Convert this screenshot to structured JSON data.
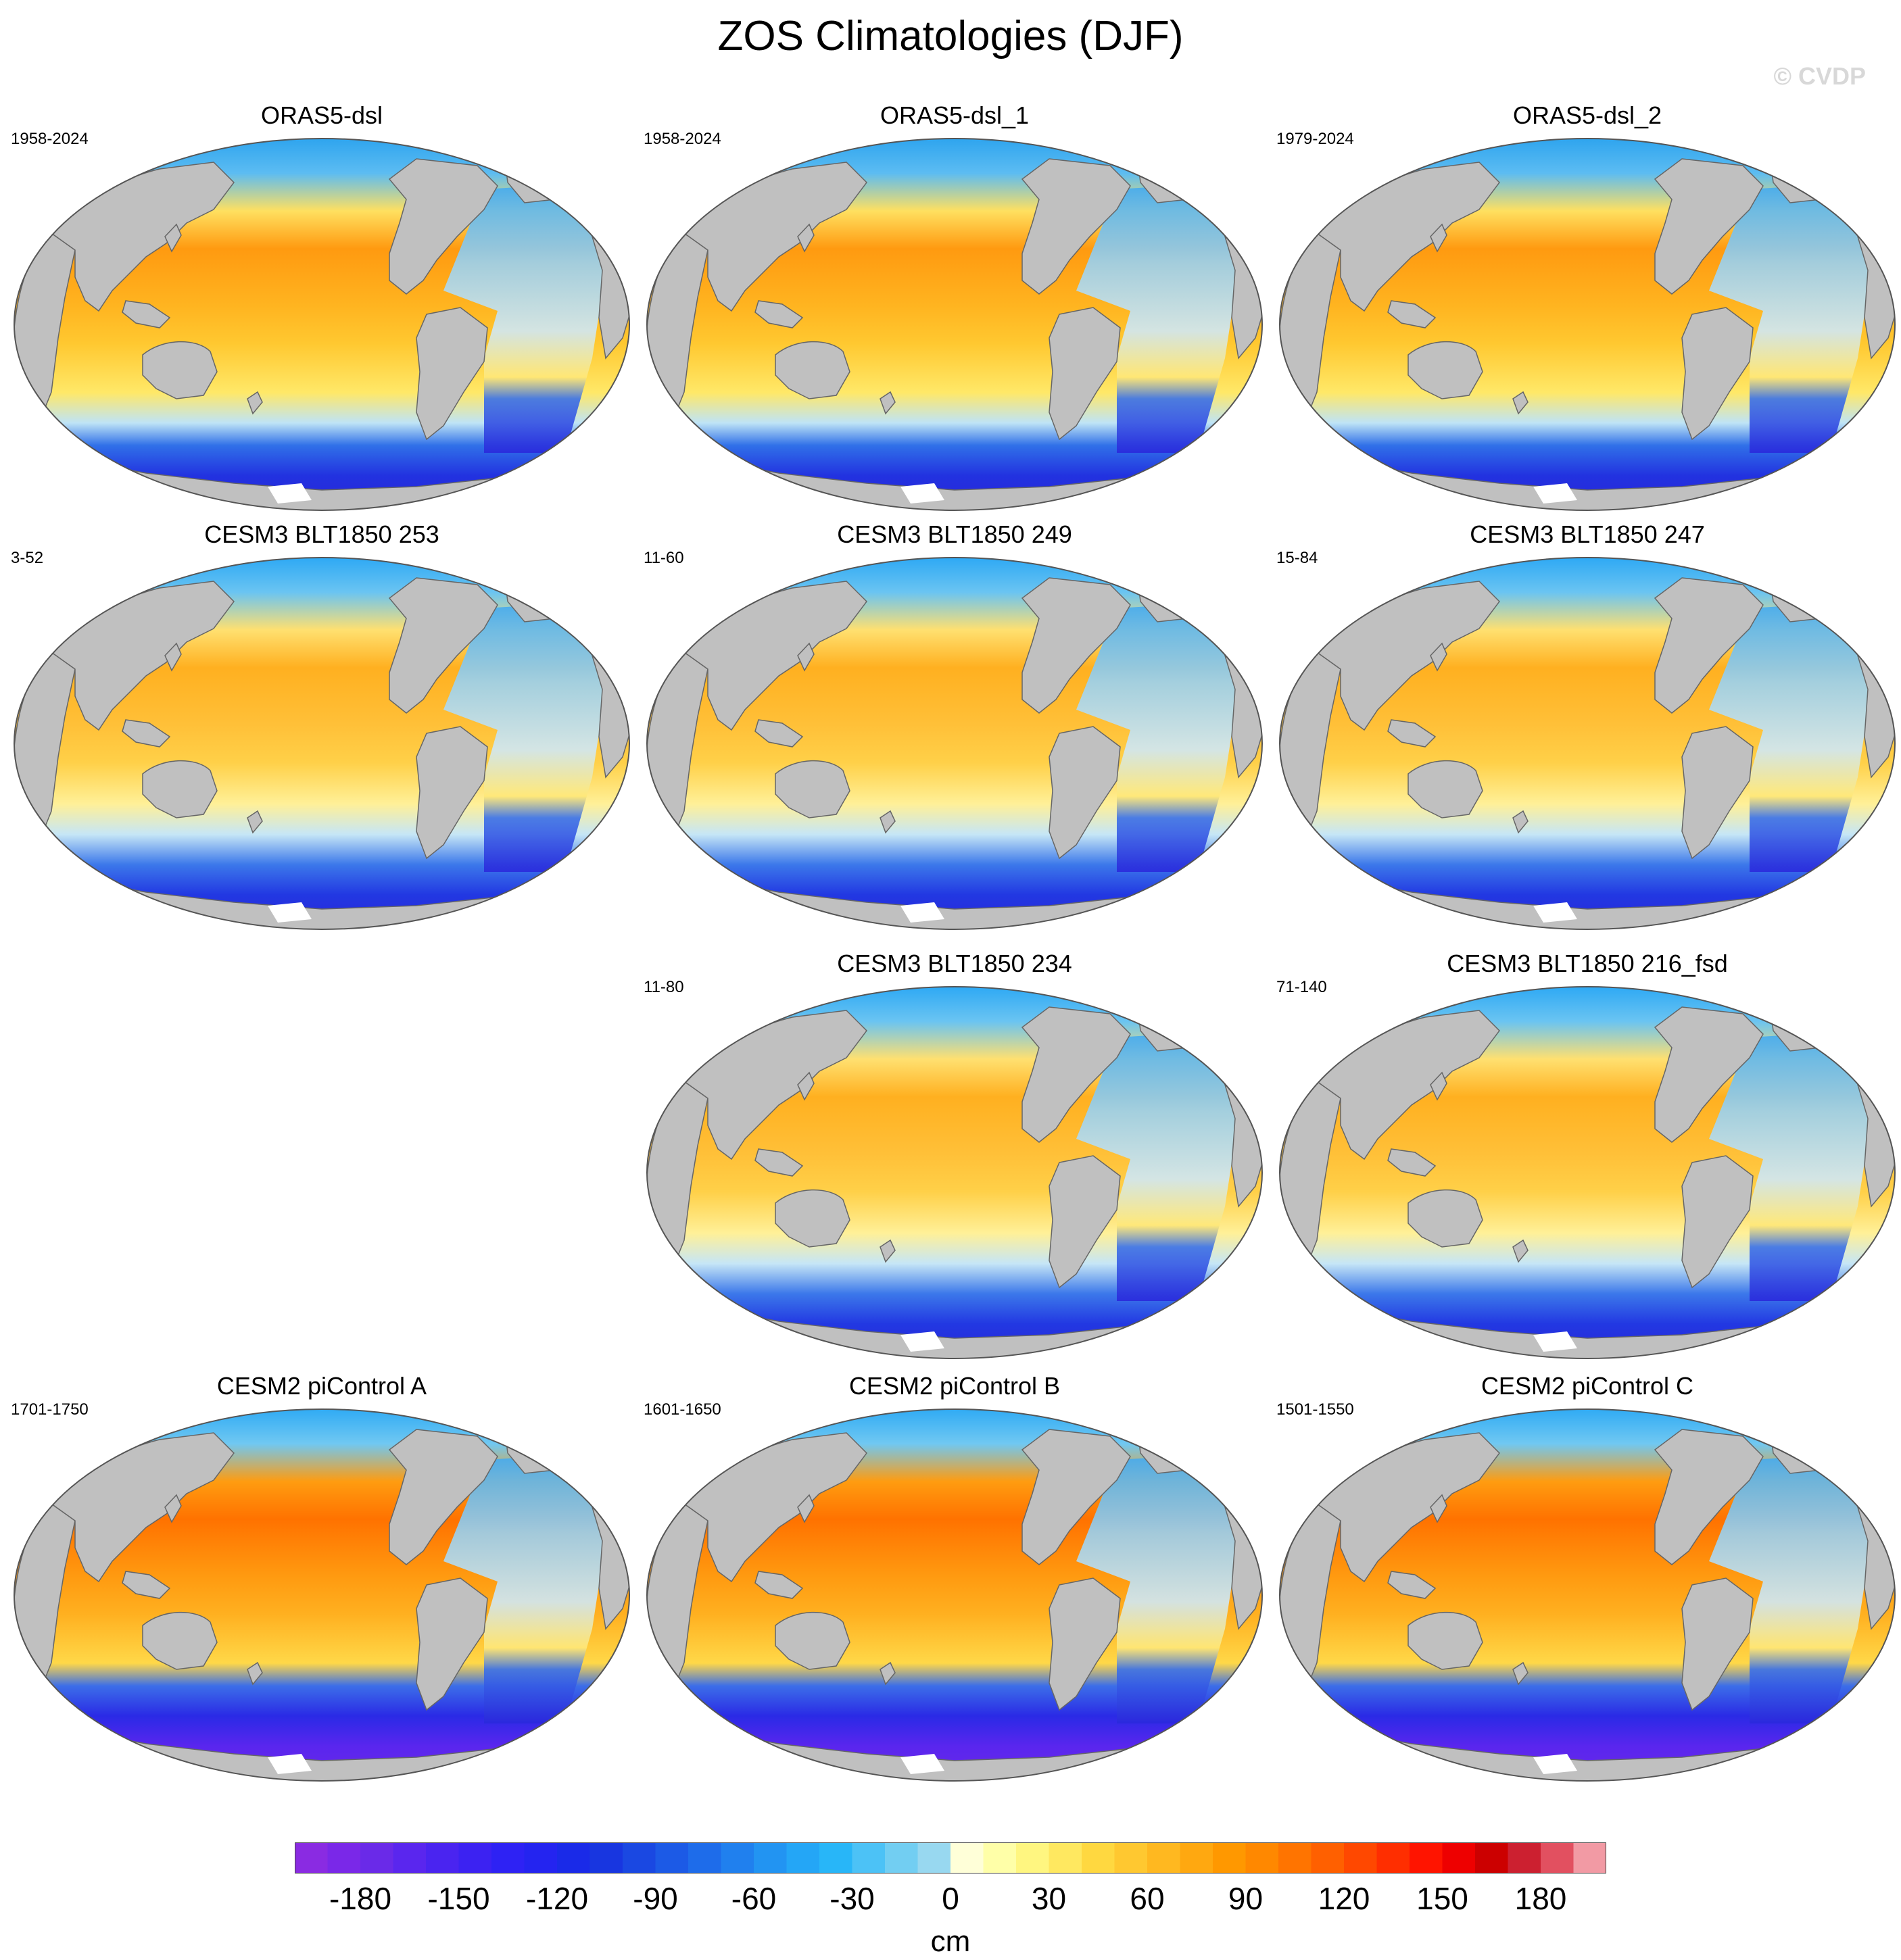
{
  "figure": {
    "title": "ZOS Climatologies (DJF)",
    "watermark": "© CVDP"
  },
  "panels": [
    {
      "title": "ORAS5-dsl",
      "years": "1958-2024",
      "style": "obs"
    },
    {
      "title": "ORAS5-dsl_1",
      "years": "1958-2024",
      "style": "obs"
    },
    {
      "title": "ORAS5-dsl_2",
      "years": "1979-2024",
      "style": "obs"
    },
    {
      "title": "CESM3 BLT1850 253",
      "years": "3-52",
      "style": "cesm3"
    },
    {
      "title": "CESM3 BLT1850 249",
      "years": "11-60",
      "style": "cesm3"
    },
    {
      "title": "CESM3 BLT1850 247",
      "years": "15-84",
      "style": "cesm3"
    },
    {
      "title": "CESM3 BLT1850 234",
      "years": "11-80",
      "style": "cesm3"
    },
    {
      "title": "CESM3 BLT1850 216_fsd",
      "years": "71-140",
      "style": "cesm3"
    },
    {
      "title": "CESM2 piControl A",
      "years": "1701-1750",
      "style": "cesm2"
    },
    {
      "title": "CESM2 piControl B",
      "years": "1601-1650",
      "style": "cesm2"
    },
    {
      "title": "CESM2 piControl C",
      "years": "1501-1550",
      "style": "cesm2"
    }
  ],
  "colorbar": {
    "units": "cm",
    "min": -200,
    "max": 200,
    "step": 10,
    "tick_labels": [
      "-180",
      "-150",
      "-120",
      "-90",
      "-60",
      "-30",
      "0",
      "30",
      "60",
      "90",
      "120",
      "150",
      "180"
    ],
    "tick_values": [
      -180,
      -150,
      -120,
      -90,
      -60,
      -30,
      0,
      30,
      60,
      90,
      120,
      150,
      180
    ],
    "colors": [
      "#8a2be2",
      "#7a28e8",
      "#6a2ae8",
      "#5a26ee",
      "#4a24f0",
      "#3c22f2",
      "#2e22f4",
      "#2424f0",
      "#1a2ae8",
      "#1836e0",
      "#1a48e2",
      "#1c5ae6",
      "#1e6cea",
      "#2080ee",
      "#2294f2",
      "#24a6f6",
      "#28b6f8",
      "#4cc2f6",
      "#72cef2",
      "#98d8f0",
      "#ffffd8",
      "#ffffa8",
      "#fff680",
      "#ffe860",
      "#ffd840",
      "#ffc830",
      "#ffb820",
      "#ffa810",
      "#ff9800",
      "#ff8800",
      "#ff7400",
      "#ff6000",
      "#ff4800",
      "#ff2e00",
      "#ff1400",
      "#ee0000",
      "#cc0000",
      "#cc2030",
      "#e25060",
      "#f29aa4"
    ]
  },
  "map_colors": {
    "land": "#c0c0c0",
    "coast": "#666666",
    "ice": "#ffffff"
  }
}
